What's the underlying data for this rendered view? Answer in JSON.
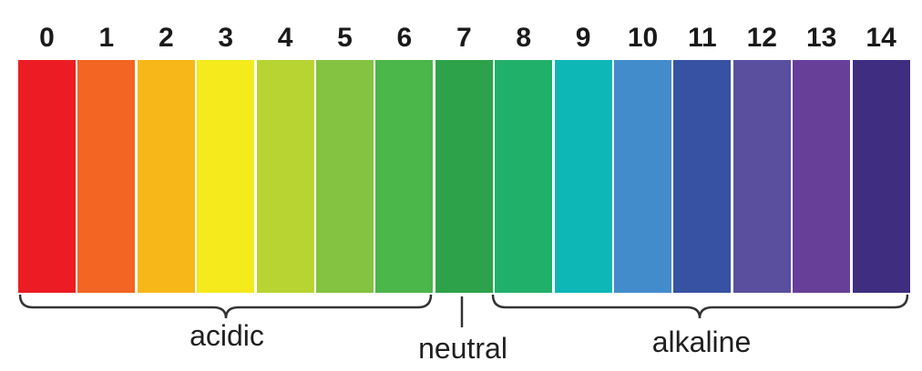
{
  "scale": {
    "values": [
      "0",
      "1",
      "2",
      "3",
      "4",
      "5",
      "6",
      "7",
      "8",
      "9",
      "10",
      "11",
      "12",
      "13",
      "14"
    ],
    "colors": [
      "#ec1c24",
      "#f26522",
      "#f7b719",
      "#f4ea1c",
      "#b8d432",
      "#83c341",
      "#4bb64a",
      "#2ea24a",
      "#21b06a",
      "#0db7b6",
      "#438ccb",
      "#3752a3",
      "#5a4f9f",
      "#683f98",
      "#3f2e80"
    ]
  },
  "groups": {
    "acidic": {
      "label": "acidic",
      "from": 0,
      "to": 6
    },
    "neutral": {
      "label": "neutral",
      "at": 7
    },
    "alkaline": {
      "label": "alkaline",
      "from": 8,
      "to": 14
    }
  },
  "style": {
    "brace_color": "#333333"
  }
}
